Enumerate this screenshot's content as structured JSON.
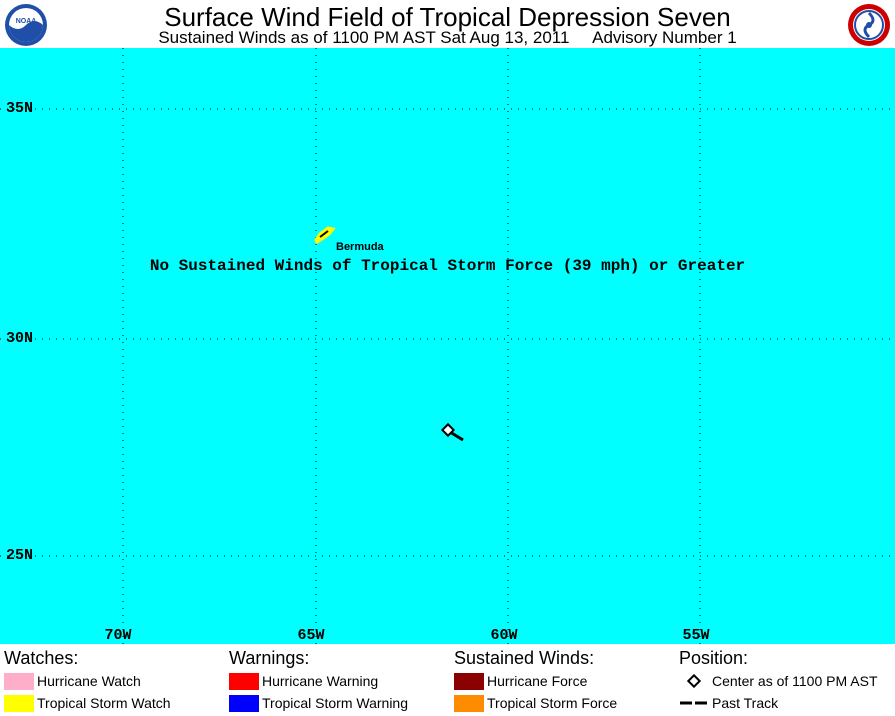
{
  "header": {
    "title": "Surface Wind Field of Tropical Depression Seven",
    "subtitle": "Sustained Winds as of 1100 PM AST Sat Aug 13, 2011     Advisory Number 1",
    "left_logo": "NOAA",
    "right_logo": "National Weather Service"
  },
  "map": {
    "latitude_labels": [
      "35N",
      "30N",
      "25N"
    ],
    "longitude_labels": [
      "70W",
      "65W",
      "60W",
      "55W"
    ],
    "place_label": "Bermuda",
    "message": "No Sustained Winds of Tropical Storm Force (39 mph) or Greater",
    "background_color": "#00ffff",
    "center_position": {
      "lat": 27.8,
      "lon": -61.5
    },
    "past_track": [
      {
        "lat": 27.8,
        "lon": -61.5
      },
      {
        "lat": 27.6,
        "lon": -61.2
      }
    ]
  },
  "legend": {
    "watches": {
      "heading": "Watches:",
      "items": [
        {
          "label": "Hurricane Watch",
          "color": "#ffaec9"
        },
        {
          "label": "Tropical Storm Watch",
          "color": "#ffff00"
        }
      ]
    },
    "warnings": {
      "heading": "Warnings:",
      "items": [
        {
          "label": "Hurricane Warning",
          "color": "#ff0000"
        },
        {
          "label": "Tropical Storm Warning",
          "color": "#0000ff"
        }
      ]
    },
    "winds": {
      "heading": "Sustained Winds:",
      "items": [
        {
          "label": "Hurricane Force",
          "color": "#8b0000"
        },
        {
          "label": "Tropical Storm Force",
          "color": "#ff8c00"
        }
      ]
    },
    "position": {
      "heading": "Position:",
      "items": [
        {
          "label": "Center as of 1100 PM AST",
          "icon": "diamond-icon"
        },
        {
          "label": "Past Track",
          "icon": "dashed-line-icon"
        }
      ]
    }
  }
}
